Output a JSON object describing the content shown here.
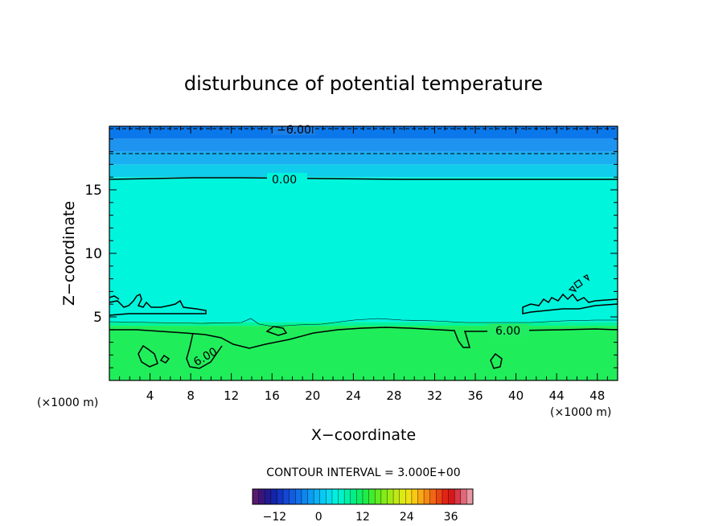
{
  "chart_data": {
    "type": "heatmap",
    "title": "disturbunce of potential temperature",
    "xlabel": "X−coordinate",
    "ylabel": "Z−coordinate",
    "x_unit": "(×1000 m)",
    "z_unit": "(×1000 m)",
    "xlim": [
      0,
      50
    ],
    "ylim": [
      0,
      20
    ],
    "x_ticks": [
      4,
      8,
      12,
      16,
      20,
      24,
      28,
      32,
      36,
      40,
      44,
      48
    ],
    "y_ticks": [
      5,
      10,
      15
    ],
    "contour_interval_text": "CONTOUR INTERVAL = 3.000E+00",
    "contour_labels": [
      {
        "text": "−6.00",
        "x": 19,
        "z": 19.6
      },
      {
        "text": "0.00",
        "x": 17,
        "z": 15.8
      },
      {
        "text": "6.00",
        "x": 39,
        "z": 3.9
      },
      {
        "text": "6.00",
        "x": 9.5,
        "z": 2.6
      }
    ],
    "approx_field": [
      {
        "z_range": [
          19.0,
          20.0
        ],
        "value": -8,
        "color": "#0a78ea"
      },
      {
        "z_range": [
          18.0,
          19.0
        ],
        "value": -5,
        "color": "#1e94f0"
      },
      {
        "z_range": [
          17.0,
          18.0
        ],
        "value": -3,
        "color": "#1aaff0"
      },
      {
        "z_range": [
          16.0,
          17.0
        ],
        "value": -1,
        "color": "#10cdeb"
      },
      {
        "z_range": [
          4.6,
          16.0
        ],
        "value": 1,
        "color": "#00f5dd"
      },
      {
        "z_range": [
          4.3,
          4.6
        ],
        "value": 4,
        "color": "#00f3a0"
      },
      {
        "z_range": [
          0,
          4.3
        ],
        "value": 7,
        "color": "#1fee5a"
      }
    ],
    "colorbar": {
      "min": -18,
      "max": 42,
      "ticks": [
        -12,
        0,
        12,
        24,
        36
      ],
      "tick_labels": [
        "−12",
        "0",
        "12",
        "24",
        "36"
      ],
      "colors": [
        "#5a1870",
        "#3a147a",
        "#221a90",
        "#1324a8",
        "#1234c0",
        "#1448d4",
        "#125ce0",
        "#1070e8",
        "#0e86ee",
        "#0c9cf2",
        "#0ab2f4",
        "#08c8f4",
        "#06dcee",
        "#00f0e0",
        "#00f3c8",
        "#00f1a8",
        "#02ef86",
        "#10ed64",
        "#20ec48",
        "#40ec30",
        "#60ec20",
        "#80ec18",
        "#a0ea14",
        "#c0e814",
        "#dcea14",
        "#f0e014",
        "#f8c814",
        "#f8a814",
        "#f68814",
        "#f06614",
        "#ea4414",
        "#e22414",
        "#d81818",
        "#d83848",
        "#e06878",
        "#e898a4"
      ]
    }
  }
}
